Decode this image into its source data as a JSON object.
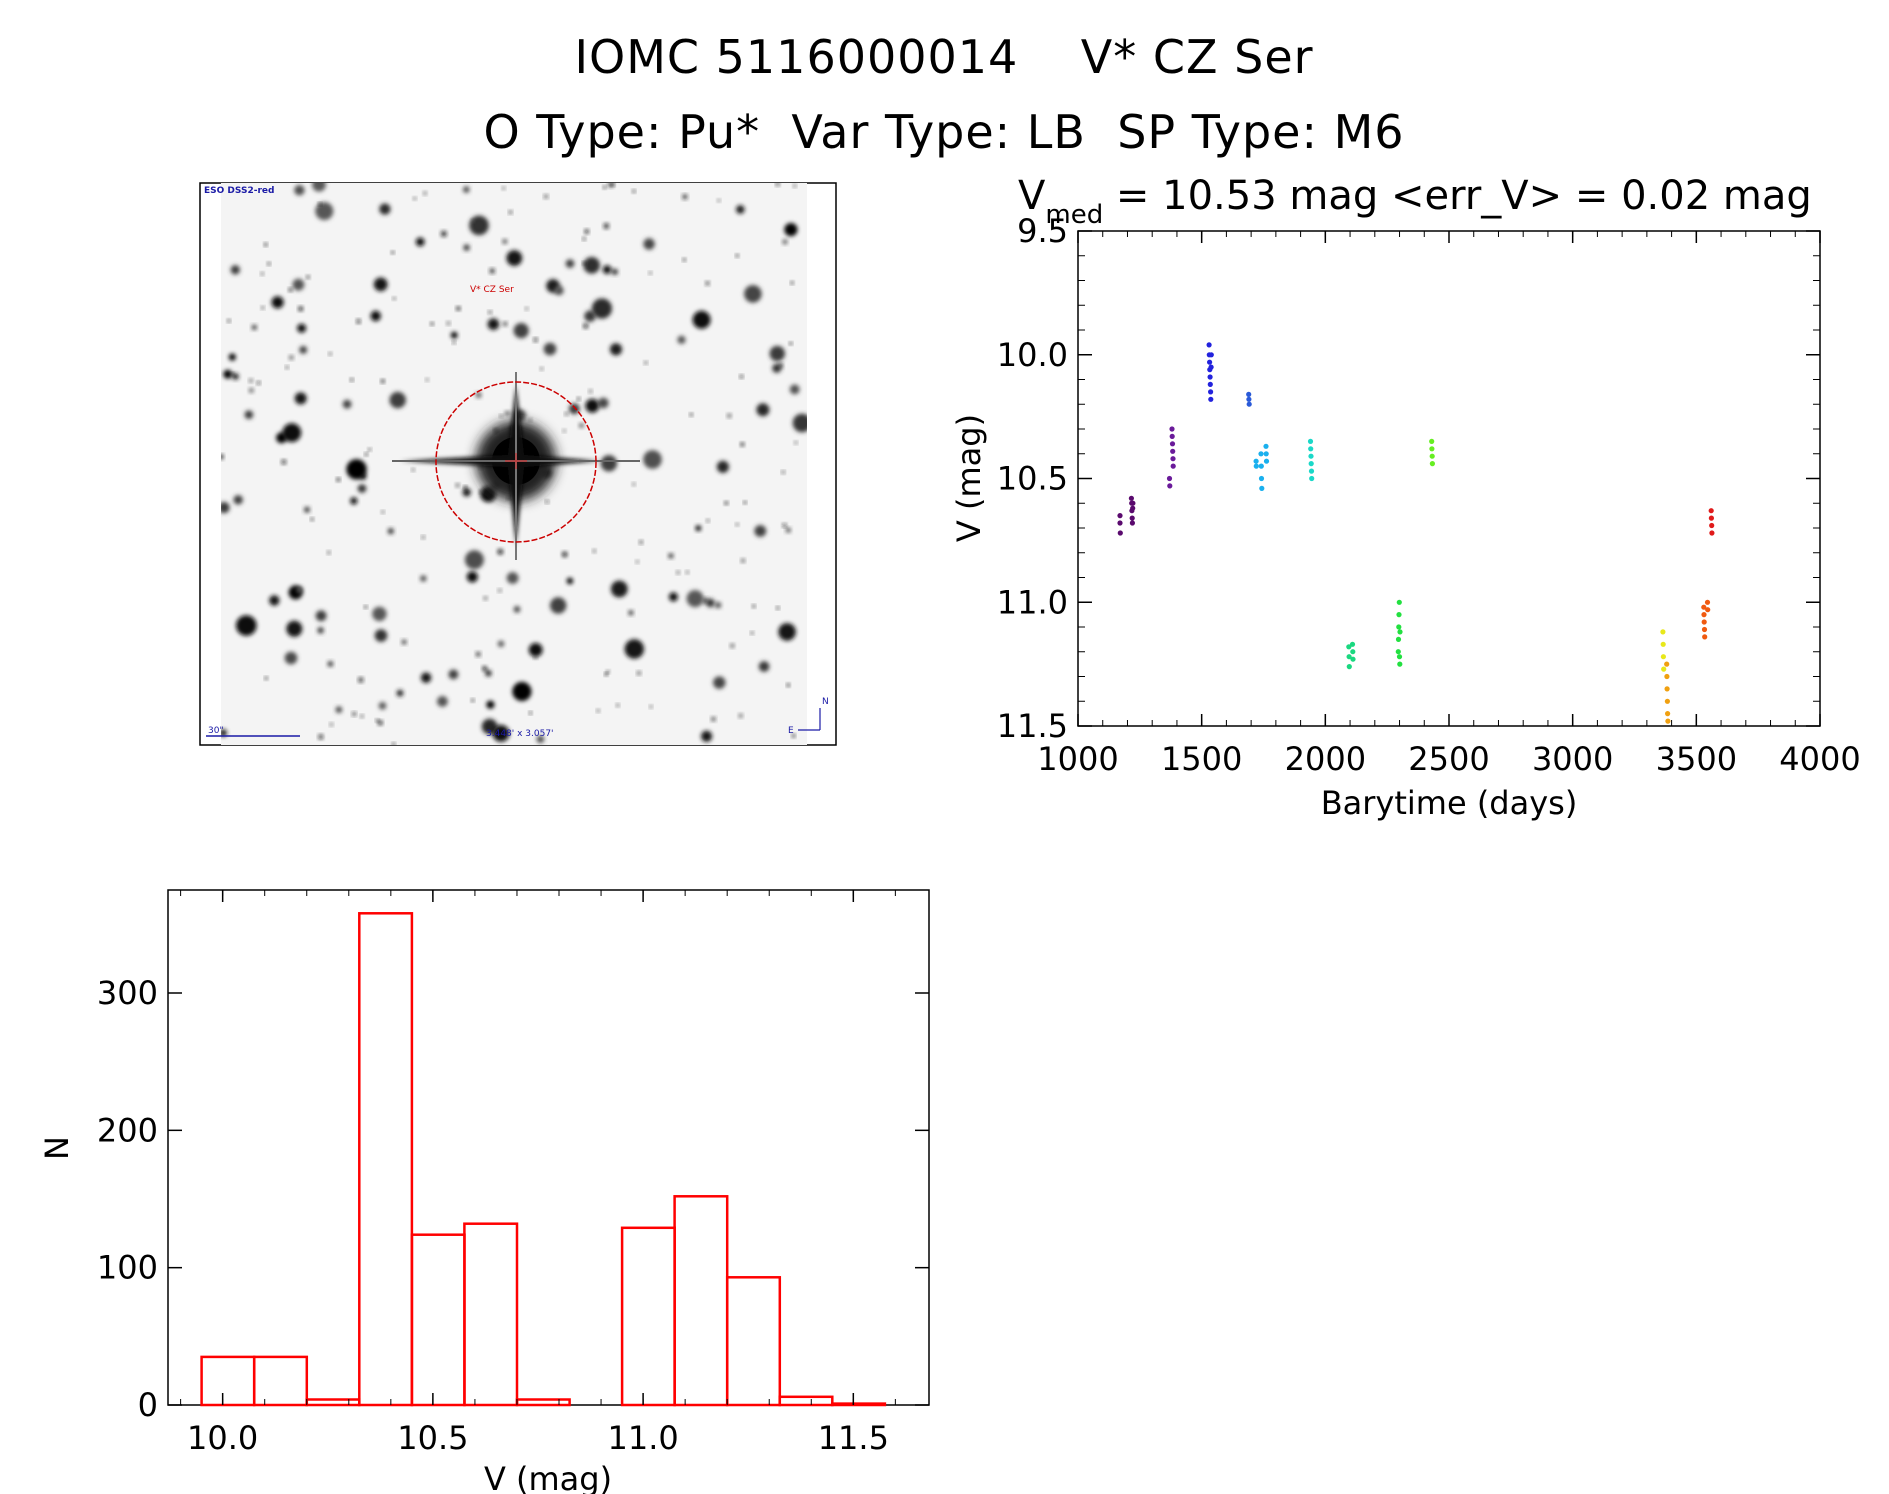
{
  "header": {
    "title_line1": "IOMC 5116000014    V* CZ Ser",
    "title_line2": "O Type: Pu*  Var Type: LB  SP Type: M6"
  },
  "image_panel": {
    "survey_label": "ESO DSS2-red",
    "target_label": "V* CZ Ser",
    "scale_label": "30\"",
    "size_label": "3.448' x 3.057'",
    "compass_n": "N",
    "compass_e": "E"
  },
  "colors": {
    "histogram": "#ff0000",
    "aperture_circle": "#cc0000",
    "annotation_blue": "#1a1aa6"
  },
  "chart_data": [
    {
      "type": "scatter",
      "title_main": "V",
      "title_sub": "med",
      "title_rest": " = 10.53 mag <err_V> = 0.02 mag",
      "xlabel": "Barytime (days)",
      "ylabel": "V (mag)",
      "xlim": [
        1000,
        4000
      ],
      "ylim": [
        11.5,
        9.5
      ],
      "y_inverted": true,
      "x_ticks": [
        "1000",
        "1500",
        "2000",
        "2500",
        "3000",
        "3500",
        "4000"
      ],
      "y_ticks": [
        "9.5",
        "10.0",
        "10.5",
        "11.0",
        "11.5"
      ],
      "series": [
        {
          "color": "#5a0a6e",
          "points": [
            [
              1170,
              10.65
            ],
            [
              1170,
              10.68
            ],
            [
              1171,
              10.72
            ],
            [
              1216,
              10.58
            ],
            [
              1217,
              10.6
            ],
            [
              1218,
              10.63
            ],
            [
              1219,
              10.66
            ],
            [
              1220,
              10.68
            ],
            [
              1221,
              10.62
            ],
            [
              1222,
              10.6
            ]
          ]
        },
        {
          "color": "#6a1a9a",
          "points": [
            [
              1370,
              10.5
            ],
            [
              1371,
              10.53
            ],
            [
              1380,
              10.3
            ],
            [
              1381,
              10.33
            ],
            [
              1382,
              10.36
            ],
            [
              1383,
              10.39
            ],
            [
              1384,
              10.42
            ],
            [
              1385,
              10.45
            ]
          ]
        },
        {
          "color": "#2222dd",
          "points": [
            [
              1530,
              9.96
            ],
            [
              1531,
              10.0
            ],
            [
              1532,
              10.03
            ],
            [
              1533,
              10.06
            ],
            [
              1534,
              10.09
            ],
            [
              1535,
              10.12
            ],
            [
              1536,
              10.15
            ],
            [
              1537,
              10.18
            ],
            [
              1538,
              10.05
            ],
            [
              1539,
              10.0
            ]
          ]
        },
        {
          "color": "#2a5ad8",
          "points": [
            [
              1690,
              10.16
            ],
            [
              1691,
              10.18
            ],
            [
              1692,
              10.2
            ]
          ]
        },
        {
          "color": "#1ab0ee",
          "points": [
            [
              1720,
              10.43
            ],
            [
              1721,
              10.45
            ],
            [
              1740,
              10.4
            ],
            [
              1741,
              10.45
            ],
            [
              1742,
              10.5
            ],
            [
              1743,
              10.54
            ],
            [
              1760,
              10.37
            ],
            [
              1761,
              10.4
            ],
            [
              1762,
              10.43
            ]
          ]
        },
        {
          "color": "#1ad8c8",
          "points": [
            [
              1940,
              10.35
            ],
            [
              1941,
              10.38
            ],
            [
              1942,
              10.41
            ],
            [
              1943,
              10.44
            ],
            [
              1944,
              10.47
            ],
            [
              1945,
              10.5
            ]
          ]
        },
        {
          "color": "#1ad880",
          "points": [
            [
              2095,
              11.18
            ],
            [
              2096,
              11.22
            ],
            [
              2097,
              11.26
            ],
            [
              2110,
              11.17
            ],
            [
              2111,
              11.2
            ],
            [
              2112,
              11.23
            ]
          ]
        },
        {
          "color": "#22e040",
          "points": [
            [
              2295,
              11.2
            ],
            [
              2296,
              11.15
            ],
            [
              2297,
              11.1
            ],
            [
              2298,
              11.05
            ],
            [
              2299,
              11.0
            ],
            [
              2300,
              11.22
            ],
            [
              2301,
              11.25
            ],
            [
              2302,
              11.12
            ]
          ]
        },
        {
          "color": "#66ee22",
          "points": [
            [
              2430,
              10.35
            ],
            [
              2431,
              10.38
            ],
            [
              2432,
              10.41
            ],
            [
              2433,
              10.44
            ]
          ]
        },
        {
          "color": "#e8e81a",
          "points": [
            [
              3365,
              11.12
            ],
            [
              3366,
              11.17
            ],
            [
              3367,
              11.22
            ],
            [
              3368,
              11.27
            ]
          ]
        },
        {
          "color": "#f0a010",
          "points": [
            [
              3380,
              11.25
            ],
            [
              3381,
              11.3
            ],
            [
              3382,
              11.35
            ],
            [
              3383,
              11.4
            ],
            [
              3384,
              11.45
            ],
            [
              3385,
              11.48
            ]
          ]
        },
        {
          "color": "#f05a10",
          "points": [
            [
              3530,
              11.02
            ],
            [
              3531,
              11.05
            ],
            [
              3532,
              11.08
            ],
            [
              3533,
              11.11
            ],
            [
              3534,
              11.14
            ],
            [
              3545,
              11.0
            ],
            [
              3546,
              11.03
            ]
          ]
        },
        {
          "color": "#e01a1a",
          "points": [
            [
              3560,
              10.63
            ],
            [
              3561,
              10.66
            ],
            [
              3562,
              10.69
            ],
            [
              3563,
              10.72
            ]
          ]
        }
      ]
    },
    {
      "type": "bar",
      "xlabel": "V (mag)",
      "ylabel": "N",
      "xlim": [
        9.87,
        11.68
      ],
      "ylim": [
        0,
        375
      ],
      "x_ticks": [
        "10.0",
        "10.5",
        "11.0",
        "11.5"
      ],
      "y_ticks": [
        "0",
        "100",
        "200",
        "300"
      ],
      "bin_edges": [
        9.95,
        10.075,
        10.2,
        10.325,
        10.45,
        10.575,
        10.7,
        10.825,
        10.95,
        11.075,
        11.2,
        11.325,
        11.45,
        11.575
      ],
      "values": [
        35,
        35,
        4,
        358,
        124,
        132,
        4,
        0,
        129,
        152,
        93,
        6,
        1
      ]
    }
  ]
}
